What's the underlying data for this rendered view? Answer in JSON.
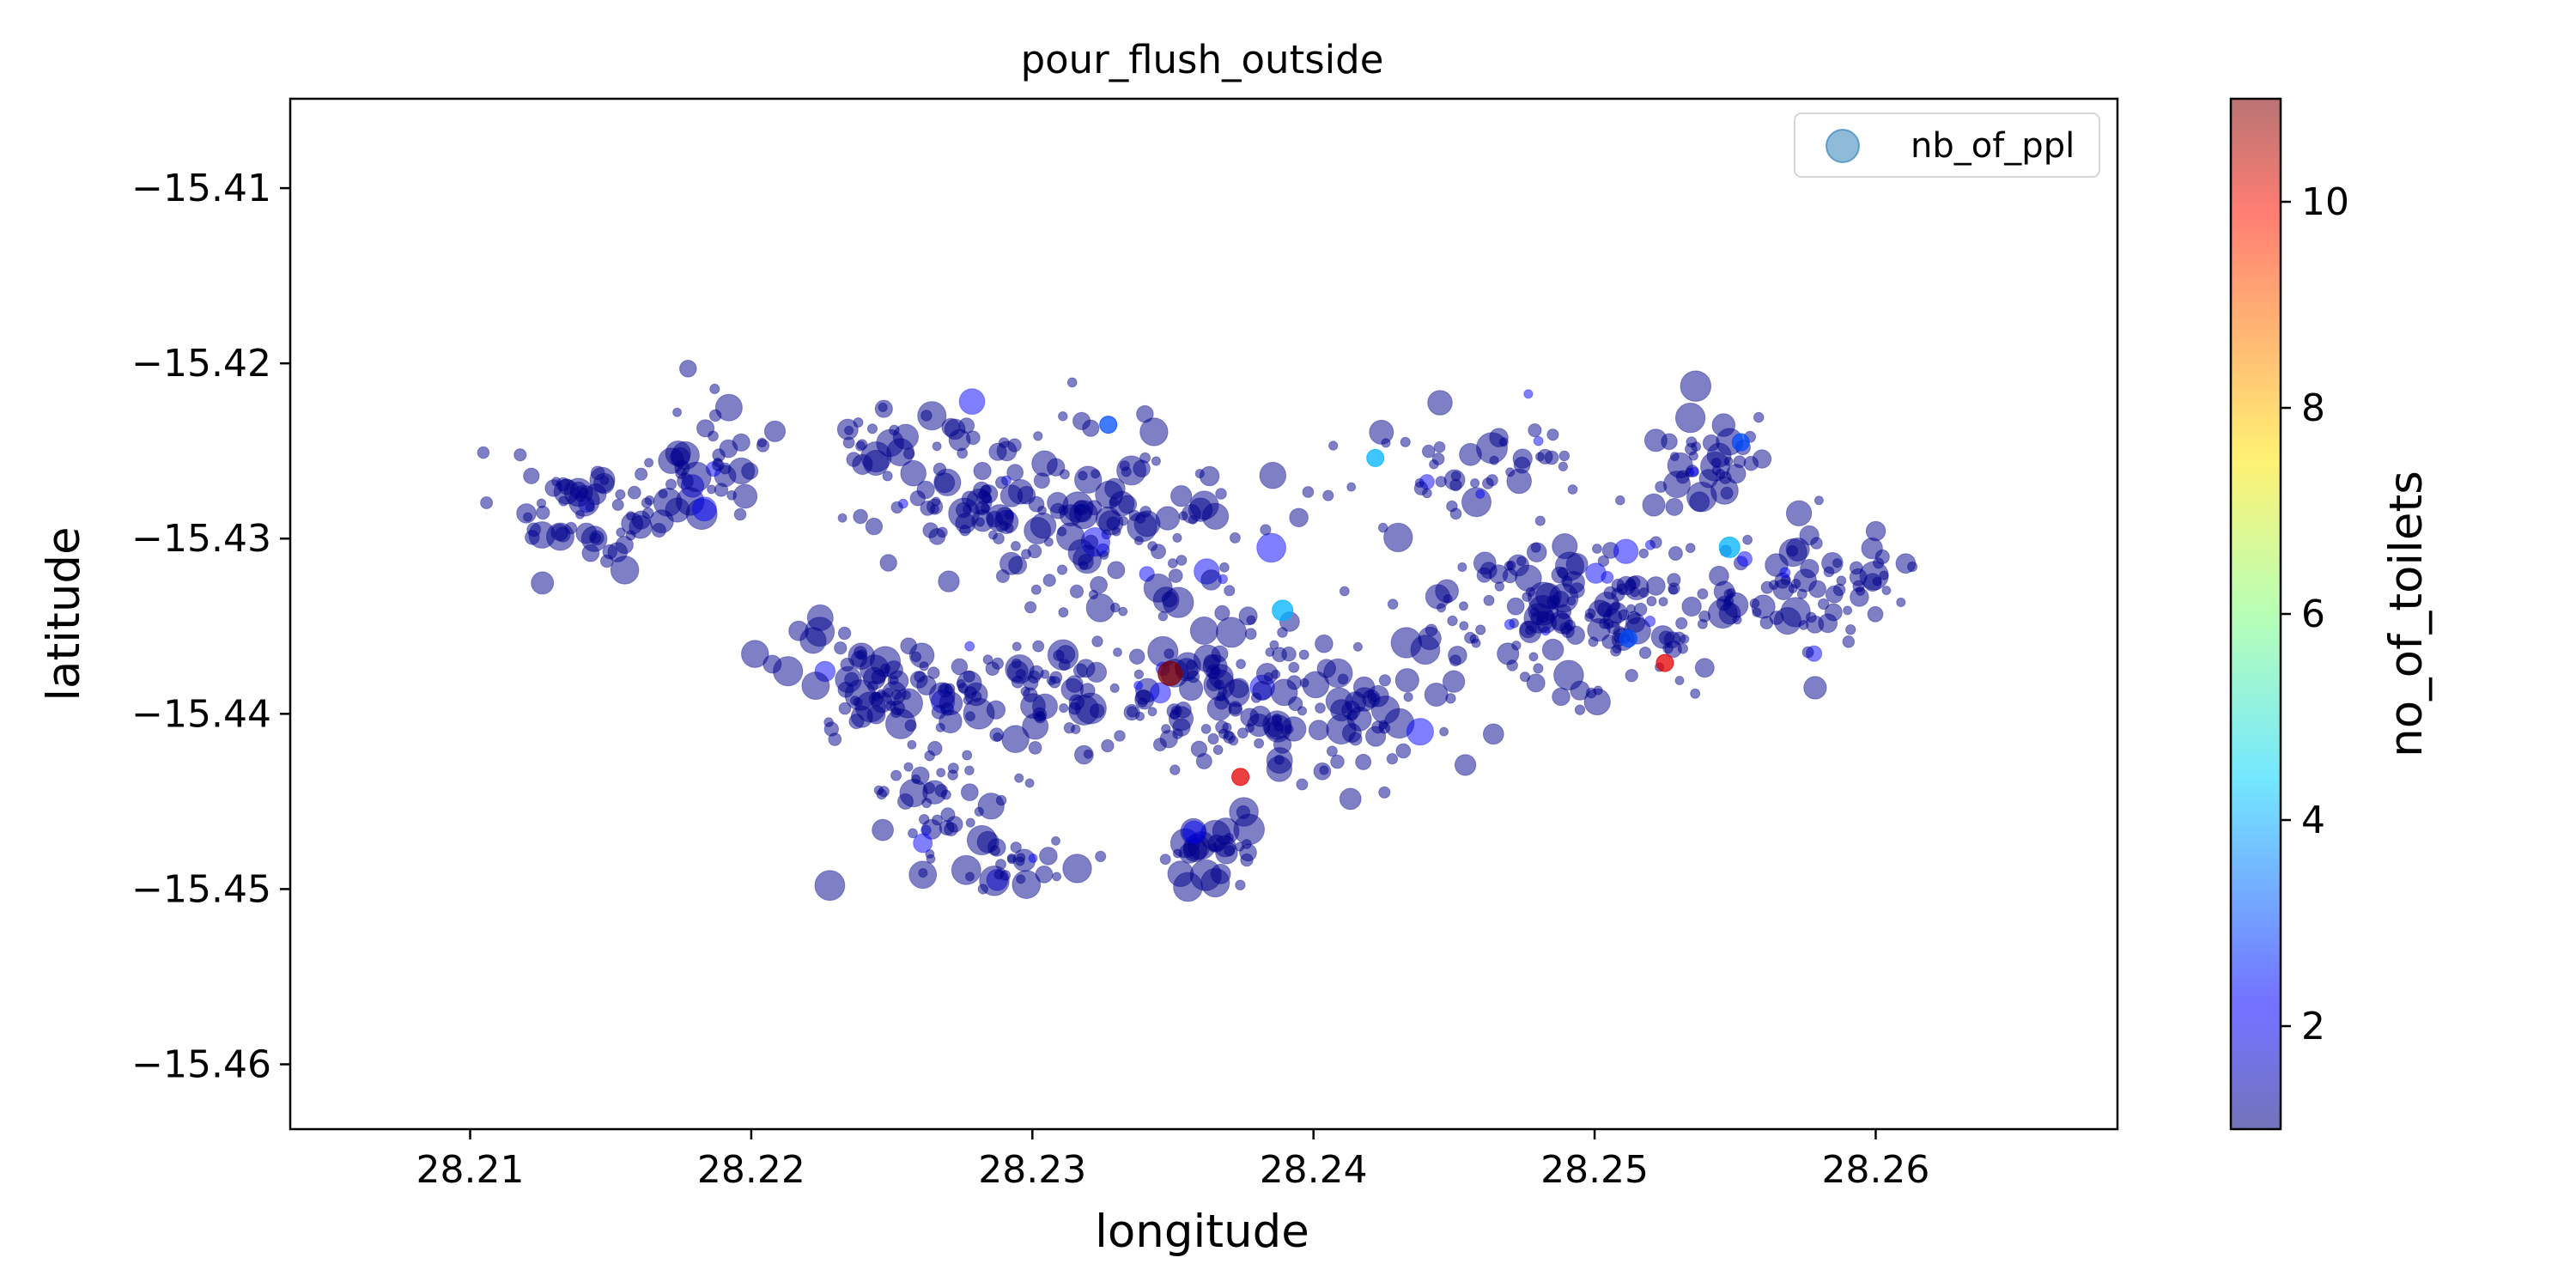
{
  "chart_data": {
    "type": "scatter",
    "title": "pour_flush_outside",
    "xlabel": "longitude",
    "ylabel": "latitude",
    "xlim": [
      28.2036,
      28.2686
    ],
    "ylim": [
      -15.4637,
      -15.4049
    ],
    "xticks": [
      28.21,
      28.22,
      28.23,
      28.24,
      28.25,
      28.26
    ],
    "xtick_labels": [
      "28.21",
      "28.22",
      "28.23",
      "28.24",
      "28.25",
      "28.26"
    ],
    "yticks": [
      -15.41,
      -15.42,
      -15.43,
      -15.44,
      -15.45,
      -15.46
    ],
    "ytick_labels": [
      "−15.41",
      "−15.42",
      "−15.43",
      "−15.44",
      "−15.45",
      "−15.46"
    ],
    "legend": {
      "label": "nb_of_ppl",
      "placement": "upper right"
    },
    "grid": false,
    "colorbar": {
      "label": "no_of_toilets",
      "range": [
        1,
        11
      ],
      "colormap": "jet",
      "alpha": 0.5,
      "ticks": [
        2,
        4,
        6,
        8,
        10
      ],
      "tick_labels": [
        "2",
        "4",
        "6",
        "8",
        "10"
      ]
    },
    "point_color_default": "#00008b",
    "marker_alpha": 0.5,
    "clusters": [
      {
        "center": [
          28.2141,
          -15.4286
        ],
        "spread": [
          0.0025,
          0.003
        ],
        "count": 60
      },
      {
        "center": [
          28.2187,
          -15.4261
        ],
        "spread": [
          0.0018,
          0.003
        ],
        "count": 40
      },
      {
        "center": [
          28.2255,
          -15.4242
        ],
        "spread": [
          0.003,
          0.002
        ],
        "count": 30
      },
      {
        "center": [
          28.229,
          -15.428
        ],
        "spread": [
          0.004,
          0.004
        ],
        "count": 90
      },
      {
        "center": [
          28.234,
          -15.4295
        ],
        "spread": [
          0.004,
          0.005
        ],
        "count": 80
      },
      {
        "center": [
          28.225,
          -15.4385
        ],
        "spread": [
          0.003,
          0.003
        ],
        "count": 80
      },
      {
        "center": [
          28.2275,
          -15.445
        ],
        "spread": [
          0.0025,
          0.0025
        ],
        "count": 40
      },
      {
        "center": [
          28.231,
          -15.439
        ],
        "spread": [
          0.003,
          0.003
        ],
        "count": 70
      },
      {
        "center": [
          28.237,
          -15.4385
        ],
        "spread": [
          0.0025,
          0.004
        ],
        "count": 90
      },
      {
        "center": [
          28.2365,
          -15.4475
        ],
        "spread": [
          0.0015,
          0.002
        ],
        "count": 30
      },
      {
        "center": [
          28.242,
          -15.44
        ],
        "spread": [
          0.003,
          0.004
        ],
        "count": 60
      },
      {
        "center": [
          28.246,
          -15.426
        ],
        "spread": [
          0.004,
          0.003
        ],
        "count": 50
      },
      {
        "center": [
          28.247,
          -15.434
        ],
        "spread": [
          0.003,
          0.004
        ],
        "count": 60
      },
      {
        "center": [
          28.251,
          -15.434
        ],
        "spread": [
          0.003,
          0.004
        ],
        "count": 100
      },
      {
        "center": [
          28.254,
          -15.426
        ],
        "spread": [
          0.002,
          0.0025
        ],
        "count": 40
      },
      {
        "center": [
          28.257,
          -15.433
        ],
        "spread": [
          0.0025,
          0.003
        ],
        "count": 50
      },
      {
        "center": [
          28.26,
          -15.432
        ],
        "spread": [
          0.0015,
          0.0015
        ],
        "count": 20
      },
      {
        "center": [
          28.229,
          -15.449
        ],
        "spread": [
          0.0025,
          0.0015
        ],
        "count": 30
      }
    ],
    "highlights": [
      {
        "x": 28.2349,
        "y": -15.4377,
        "toilets": 11,
        "size": 14
      },
      {
        "x": 28.2374,
        "y": -15.4436,
        "toilets": 10,
        "size": 10
      },
      {
        "x": 28.2525,
        "y": -15.4371,
        "toilets": 10,
        "size": 10
      },
      {
        "x": 28.2548,
        "y": -15.4305,
        "toilets": 4,
        "size": 12
      },
      {
        "x": 28.2389,
        "y": -15.4341,
        "toilets": 4,
        "size": 12
      },
      {
        "x": 28.2552,
        "y": -15.4245,
        "toilets": 3,
        "size": 10
      },
      {
        "x": 28.2327,
        "y": -15.4235,
        "toilets": 3,
        "size": 10
      },
      {
        "x": 28.2512,
        "y": -15.4357,
        "toilets": 3,
        "size": 10
      },
      {
        "x": 28.2422,
        "y": -15.4254,
        "toilets": 4,
        "size": 10
      }
    ]
  }
}
